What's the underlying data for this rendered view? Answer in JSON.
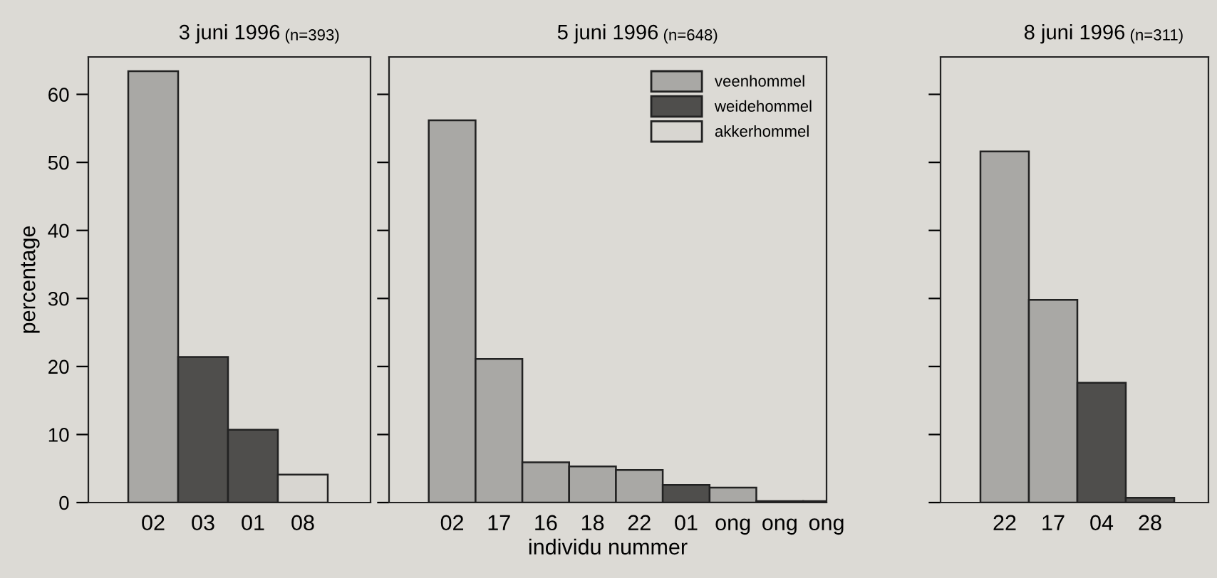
{
  "chart_data": [
    {
      "type": "bar",
      "title": "3 juni 1996",
      "subtitle": "(n=393)",
      "ylabel": "percentage",
      "categories": [
        "02",
        "03",
        "01",
        "08"
      ],
      "values": [
        63.4,
        21.4,
        10.7,
        4.1
      ],
      "colors": [
        "#a9a8a5",
        "#4f4e4c",
        "#4f4e4c",
        "#d8d6d1"
      ],
      "ylim": [
        0,
        65.5
      ],
      "yticks": [
        0,
        10,
        20,
        30,
        40,
        50,
        60
      ],
      "grid": false,
      "legend": false
    },
    {
      "type": "bar",
      "title": "5 juni 1996",
      "subtitle": "(n=648)",
      "xlabel": "individu nummer",
      "categories": [
        "02",
        "17",
        "16",
        "18",
        "22",
        "01",
        "ong",
        "ong",
        "ong"
      ],
      "series": [
        {
          "name": "veenhommel",
          "color": "#a9a8a5",
          "values": [
            56.2,
            21.1,
            5.9,
            5.3,
            4.8,
            null,
            2.2,
            0.2,
            0.2
          ]
        },
        {
          "name": "weidehommel",
          "color": "#4f4e4c",
          "values": [
            null,
            null,
            null,
            null,
            null,
            2.6,
            null,
            null,
            null
          ]
        },
        {
          "name": "akkerhommel",
          "color": "#d8d6d1",
          "values": [
            null,
            null,
            null,
            null,
            null,
            null,
            null,
            null,
            null
          ]
        }
      ],
      "ylim": [
        0,
        65.5
      ],
      "yticks": [
        {
          "value": 0,
          "label": null
        },
        {
          "value": 10,
          "label": null
        },
        {
          "value": 20,
          "label": null
        },
        {
          "value": 30,
          "label": null
        },
        {
          "value": 40,
          "label": null
        },
        {
          "value": 50,
          "label": null
        },
        {
          "value": 60,
          "label": null
        }
      ],
      "tick_labels": "x",
      "grid": false,
      "legend": "top right"
    },
    {
      "type": "bar",
      "title": "8 juni 1996",
      "subtitle": "(n=311)",
      "categories": [
        "22",
        "17",
        "04",
        "28"
      ],
      "values": [
        51.6,
        29.8,
        17.6,
        0.7
      ],
      "colors": [
        "#a9a8a5",
        "#a9a8a5",
        "#4f4e4c",
        "#4f4e4c"
      ],
      "ylim": [
        0,
        65.5
      ],
      "yticks": [
        {
          "value": 0,
          "label": null
        },
        {
          "value": 10,
          "label": null
        },
        {
          "value": 20,
          "label": null
        },
        {
          "value": 30,
          "label": null
        },
        {
          "value": 40,
          "label": null
        },
        {
          "value": 50,
          "label": null
        },
        {
          "value": 60,
          "label": null
        }
      ],
      "tick_labels": "x",
      "grid": false,
      "legend": false
    }
  ]
}
